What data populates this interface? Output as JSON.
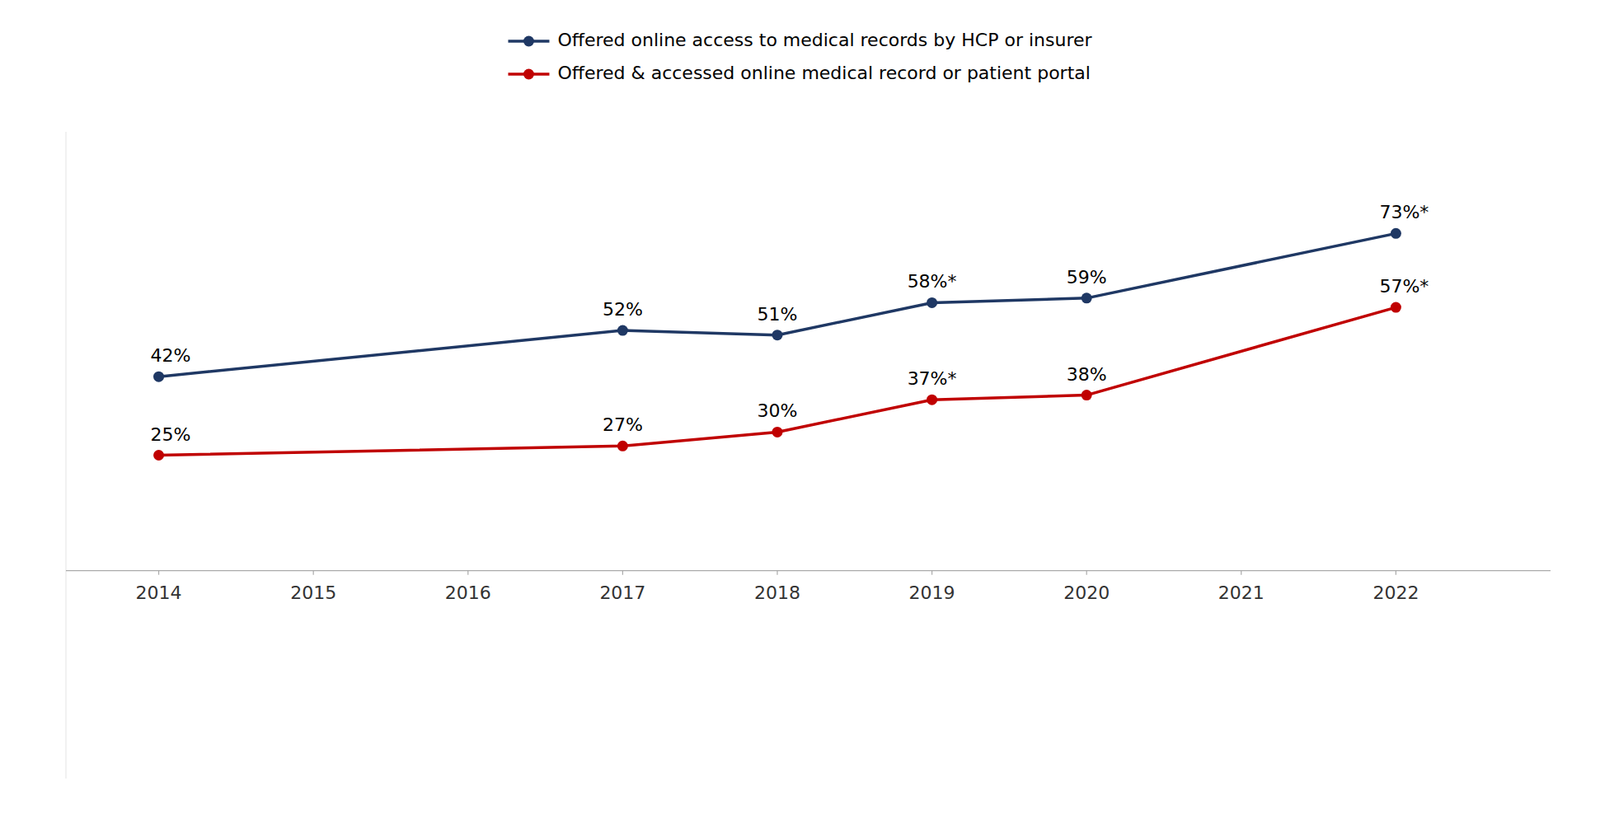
{
  "chart_data": {
    "type": "line",
    "x": [
      2014,
      2017,
      2018,
      2019,
      2020,
      2022
    ],
    "series": [
      {
        "name": "Offered online access to medical records by HCP or insurer",
        "color": "#1F3864",
        "marker": "circle",
        "values": [
          42,
          52,
          51,
          58,
          59,
          73
        ],
        "value_labels": [
          "42%",
          "52%",
          "51%",
          "58%*",
          "59%",
          "73%*"
        ]
      },
      {
        "name": "Offered & accessed online medical record or patient portal",
        "color": "#C00000",
        "marker": "circle",
        "values": [
          25,
          27,
          30,
          37,
          38,
          57
        ],
        "value_labels": [
          "25%",
          "27%",
          "30%",
          "37%*",
          "38%",
          "57%*"
        ]
      }
    ],
    "xlim": [
      2013.4,
      2023.0
    ],
    "ylim": [
      -45,
      95
    ],
    "xticks": [
      2014,
      2015,
      2016,
      2017,
      2018,
      2019,
      2020,
      2021,
      2022
    ],
    "yticks": [],
    "tick_labels": "x",
    "grid": false,
    "legend": "top",
    "data_labels": true
  }
}
